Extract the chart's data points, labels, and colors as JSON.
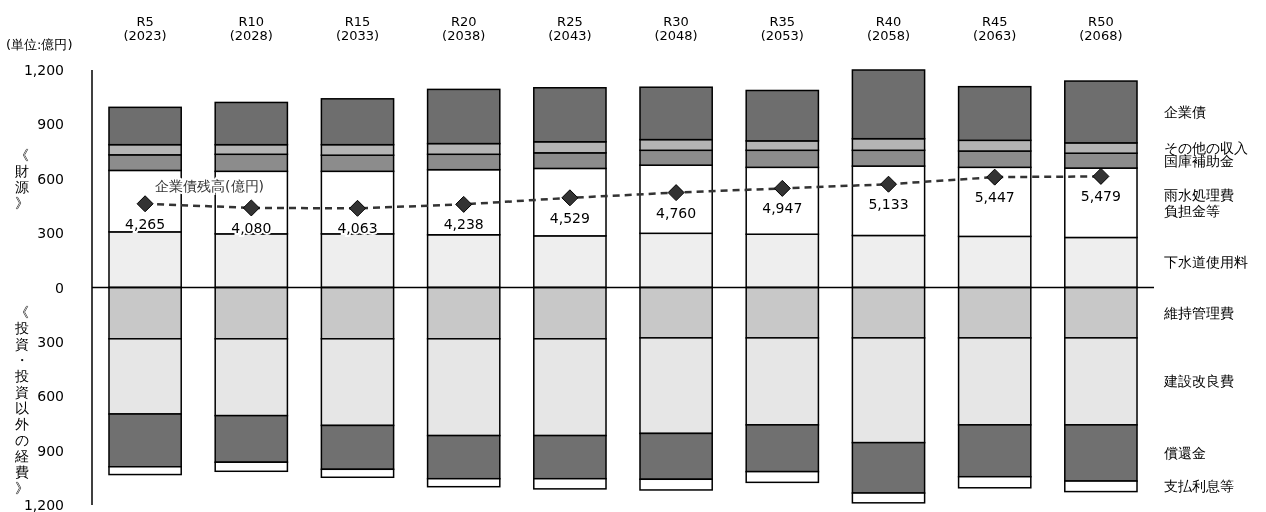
{
  "chart_data": {
    "type": "bar",
    "stacked": true,
    "categories": [
      "R5\n(2023)",
      "R10\n(2028)",
      "R15\n(2033)",
      "R20\n(2038)",
      "R25\n(2043)",
      "R30\n(2048)",
      "R35\n(2053)",
      "R40\n(2058)",
      "R45\n(2063)",
      "R50\n(2068)"
    ],
    "ylabel": "《財源》",
    "annotations": [
      "(単位:億円)",
      "《投資・投資以外の経費》"
    ],
    "ylim": [
      -1200,
      1200
    ],
    "yticks": [
      {
        "value": 1200,
        "label": "1,200"
      },
      900,
      600,
      300,
      0,
      {
        "value": -300,
        "label": "300"
      },
      {
        "value": -600,
        "label": "600"
      },
      {
        "value": -900,
        "label": "900"
      },
      {
        "value": -1200,
        "label": "1,200"
      }
    ],
    "y2lim": [
      -9100,
      10200
    ],
    "series": [
      {
        "name": "下水道使用料",
        "color": "#eeeeee",
        "values": [
          307,
          296,
          296,
          291,
          285,
          299,
          294,
          287,
          282,
          276
        ]
      },
      {
        "name": "雨水処理費負担金等",
        "color": "#ffffff",
        "values": [
          339,
          345,
          345,
          359,
          372,
          376,
          369,
          383,
          381,
          383
        ]
      },
      {
        "name": "国庫補助金",
        "color": "#8c8c8c",
        "values": [
          86,
          94,
          89,
          85,
          86,
          82,
          94,
          87,
          90,
          82
        ]
      },
      {
        "name": "その他の収入",
        "color": "#b4b4b4",
        "values": [
          56,
          53,
          58,
          59,
          61,
          59,
          52,
          64,
          59,
          57
        ]
      },
      {
        "name": "企業債",
        "color": "#6e6e6e",
        "values": [
          206,
          233,
          253,
          299,
          298,
          289,
          278,
          379,
          296,
          341
        ]
      },
      {
        "name": "維持管理費",
        "color": "#c8c8c8",
        "values": [
          -283,
          -283,
          -283,
          -283,
          -283,
          -278,
          -278,
          -278,
          -278,
          -278
        ]
      },
      {
        "name": "建設改良費",
        "color": "#e6e6e6",
        "values": [
          -415,
          -424,
          -478,
          -534,
          -534,
          -527,
          -480,
          -578,
          -480,
          -480
        ]
      },
      {
        "name": "償還金",
        "color": "#707070",
        "values": [
          -291,
          -257,
          -242,
          -238,
          -238,
          -253,
          -258,
          -278,
          -286,
          -310
        ]
      },
      {
        "name": "支払利息等",
        "color": "#ffffff",
        "values": [
          -43,
          -50,
          -44,
          -44,
          -56,
          -59,
          -59,
          -54,
          -61,
          -58
        ]
      },
      {
        "name": "企業債残高(億円)",
        "type": "line",
        "axis": "y2",
        "color": "#333333",
        "marker": "diamond",
        "line_style": "dashed",
        "values": [
          4265,
          4080,
          4063,
          4238,
          4529,
          4760,
          4947,
          5133,
          5447,
          5479
        ],
        "value_labels": [
          "4,265",
          "4,080",
          "4,063",
          "4,238",
          "4,529",
          "4,760",
          "4,947",
          "5,133",
          "5,447",
          "5,479"
        ]
      }
    ]
  }
}
